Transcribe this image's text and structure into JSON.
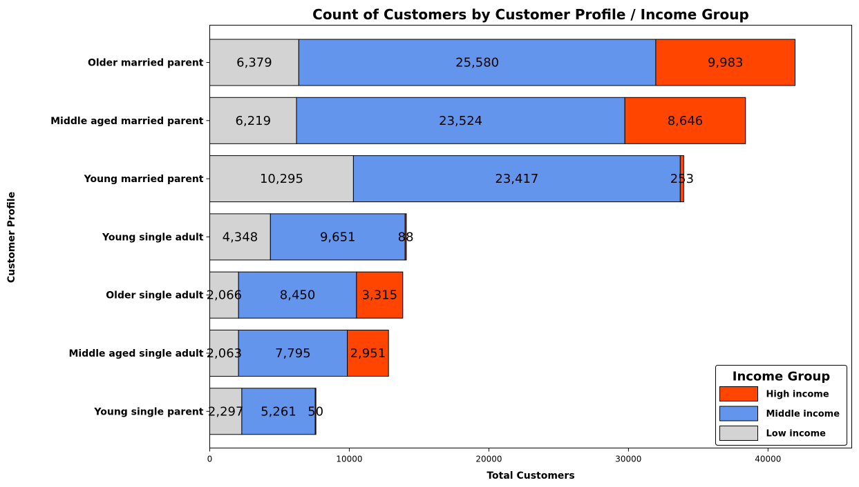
{
  "chart_data": {
    "type": "bar",
    "orientation": "horizontal",
    "stacked": true,
    "title": "Count of Customers by Customer Profile / Income Group",
    "xlabel": "Total Customers",
    "ylabel": "Customer Profile",
    "xlim": [
      0,
      46000
    ],
    "xticks": [
      0,
      10000,
      20000,
      30000,
      40000
    ],
    "categories": [
      "Older married parent",
      "Middle aged married parent",
      "Young married parent",
      "Young single adult",
      "Older single adult",
      "Middle aged single adult",
      "Young single parent"
    ],
    "series": [
      {
        "name": "Low income",
        "color": "#d3d3d3",
        "values": [
          6379,
          6219,
          10295,
          4348,
          2066,
          2063,
          2297
        ]
      },
      {
        "name": "Middle income",
        "color": "#6495ed",
        "values": [
          25580,
          23524,
          23417,
          9651,
          8450,
          7795,
          5261
        ]
      },
      {
        "name": "High income",
        "color": "#ff4500",
        "values": [
          9983,
          8646,
          253,
          88,
          3315,
          2951,
          50
        ]
      }
    ],
    "legend": {
      "title": "Income Group",
      "position": "lower-right",
      "entries": [
        "High income",
        "Middle income",
        "Low income"
      ]
    },
    "grid": false
  }
}
